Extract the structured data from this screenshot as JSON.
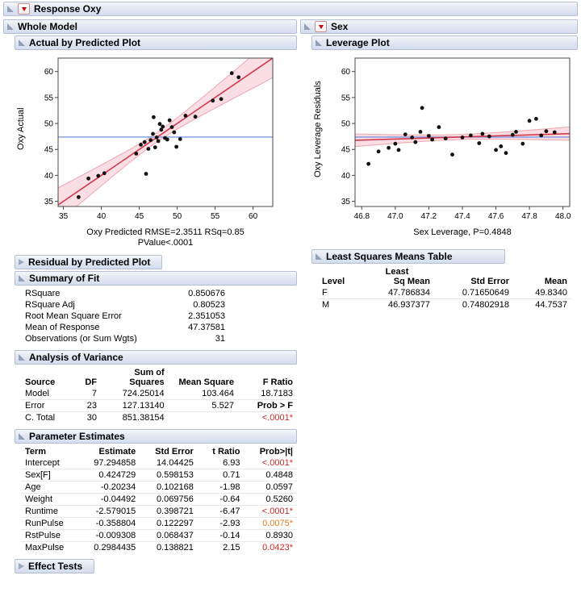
{
  "title": "Response Oxy",
  "colors": {
    "sig_red": "#cc2929",
    "sig_orange": "#df7b1e",
    "header_border": "#b4bfd4"
  },
  "sections": {
    "whole_model": {
      "title": "Whole Model"
    },
    "actual_by_predicted": {
      "title": "Actual by Predicted Plot"
    },
    "residual_by_predicted": {
      "title": "Residual by Predicted Plot"
    },
    "summary_of_fit": {
      "title": "Summary of Fit",
      "table": {
        "aligns": [
          "l",
          "r"
        ],
        "widths": [
          168,
          70
        ],
        "rows": [
          [
            "RSquare",
            "0.850676"
          ],
          [
            "RSquare Adj",
            "0.80523"
          ],
          [
            "Root Mean Square Error",
            "2.351053"
          ],
          [
            "Mean of Response",
            "47.37581"
          ],
          [
            "Observations (or Sum Wgts)",
            "31"
          ]
        ]
      }
    },
    "anova": {
      "title": "Analysis of Variance",
      "table": {
        "aligns": [
          "l",
          "r",
          "r",
          "r",
          "r"
        ],
        "widths": [
          58,
          34,
          84,
          80,
          72
        ],
        "header_top": [
          "",
          "",
          "Sum of",
          "",
          ""
        ],
        "header": [
          "Source",
          "DF",
          "Squares",
          "Mean Square",
          "F Ratio"
        ],
        "rows": [
          [
            "Model",
            "7",
            "724.25014",
            "103.464",
            "18.7183"
          ],
          [
            "Error",
            "23",
            "127.13140",
            "5.527",
            {
              "t": "Prob > F",
              "cls": "bold"
            }
          ],
          [
            "C. Total",
            "30",
            "851.38154",
            "",
            {
              "t": "<.0001*",
              "cls": "sig"
            }
          ]
        ]
      }
    },
    "parameter_estimates": {
      "title": "Parameter Estimates",
      "table": {
        "aligns": [
          "l",
          "r",
          "r",
          "r",
          "r"
        ],
        "widths": [
          62,
          74,
          66,
          52,
          60
        ],
        "header": [
          "Term",
          "Estimate",
          "Std Error",
          "t Ratio",
          "Prob>|t|"
        ],
        "rows": [
          [
            "Intercept",
            "97.294858",
            "14.04425",
            "6.93",
            {
              "t": "<.0001*",
              "cls": "sig"
            }
          ],
          [
            "Sex[F]",
            "0.424729",
            "0.598153",
            "0.71",
            "0.4848"
          ],
          [
            "Age",
            "-0.20234",
            "0.102168",
            "-1.98",
            "0.0597"
          ],
          [
            "Weight",
            "-0.04492",
            "0.069756",
            "-0.64",
            "0.5260"
          ],
          [
            "Runtime",
            "-2.579015",
            "0.398721",
            "-6.47",
            {
              "t": "<.0001*",
              "cls": "sig"
            }
          ],
          [
            "RunPulse",
            "-0.358804",
            "0.122297",
            "-2.93",
            {
              "t": "0.0075*",
              "cls": "sig-o"
            }
          ],
          [
            "RstPulse",
            "-0.009308",
            "0.068437",
            "-0.14",
            "0.8930"
          ],
          [
            "MaxPulse",
            "0.2984435",
            "0.138821",
            "2.15",
            {
              "t": "0.0423*",
              "cls": "sig"
            }
          ]
        ]
      }
    },
    "effect_tests": {
      "title": "Effect Tests"
    },
    "sex": {
      "title": "Sex"
    },
    "leverage_plot": {
      "title": "Leverage Plot"
    },
    "lsmeans": {
      "title": "Least Squares Means Table",
      "table": {
        "aligns": [
          "l",
          "r",
          "r",
          "r"
        ],
        "widths": [
          42,
          82,
          88,
          62
        ],
        "header_top": [
          "",
          {
            "t": "Least",
            "cls": "ctr"
          },
          "",
          ""
        ],
        "header": [
          "Level",
          "Sq Mean",
          "Std Error",
          "Mean"
        ],
        "rows": [
          [
            "F",
            "47.786834",
            "0.71650649",
            "49.8340"
          ],
          [
            "M",
            "46.937377",
            "0.74802918",
            "44.7537"
          ]
        ]
      }
    }
  },
  "chart_data": [
    {
      "id": "abp",
      "type": "scatter",
      "title": "Actual by Predicted Plot",
      "ylabel": "Oxy Actual",
      "xlabel_lines": [
        "Oxy Predicted RMSE=2.3511 RSq=0.85",
        "PValue<.0001"
      ],
      "xlim": [
        34.3,
        62.6
      ],
      "ylim": [
        34.0,
        62.6
      ],
      "xticks": [
        35,
        40,
        45,
        50,
        55,
        60
      ],
      "xtick_labels": [
        "35",
        "40",
        "45",
        "50",
        "55",
        "60"
      ],
      "yticks": [
        35,
        40,
        45,
        50,
        55,
        60
      ],
      "ytick_labels": [
        "35",
        "40",
        "45",
        "50",
        "55",
        "60"
      ],
      "points": [
        [
          37.0,
          35.8
        ],
        [
          38.3,
          39.4
        ],
        [
          39.6,
          39.9
        ],
        [
          40.4,
          40.4
        ],
        [
          44.6,
          44.2
        ],
        [
          45.2,
          45.9
        ],
        [
          45.7,
          46.4
        ],
        [
          45.9,
          40.3
        ],
        [
          46.2,
          45.1
        ],
        [
          46.5,
          46.8
        ],
        [
          46.8,
          48.0
        ],
        [
          46.9,
          51.2
        ],
        [
          47.1,
          45.4
        ],
        [
          47.3,
          47.3
        ],
        [
          47.5,
          46.6
        ],
        [
          47.7,
          49.9
        ],
        [
          47.9,
          48.8
        ],
        [
          48.1,
          49.4
        ],
        [
          48.4,
          47.2
        ],
        [
          48.7,
          46.9
        ],
        [
          49.0,
          50.6
        ],
        [
          49.3,
          49.3
        ],
        [
          49.6,
          48.3
        ],
        [
          49.9,
          45.5
        ],
        [
          50.4,
          47.0
        ],
        [
          51.1,
          51.5
        ],
        [
          52.4,
          51.3
        ],
        [
          54.7,
          54.4
        ],
        [
          55.8,
          54.7
        ],
        [
          57.2,
          59.7
        ],
        [
          58.1,
          58.9
        ]
      ],
      "fit_line": {
        "x": [
          34.3,
          62.6
        ],
        "y": [
          34.3,
          62.6
        ]
      },
      "mean_line_y": 47.37581,
      "band": {
        "center_x": 47.38,
        "half_center": 0.9,
        "half_edge": 3.8
      },
      "colors": {
        "fit": "#d2384e",
        "mean": "#7b96dd",
        "band_fill": "rgba(236,92,113,0.20)",
        "band_edge": "rgba(221,110,125,0.55)",
        "point": "#111111"
      }
    },
    {
      "id": "lev",
      "type": "scatter",
      "title": "Leverage Plot",
      "ylabel": "Oxy Leverage Residuals",
      "xlabel_lines": [
        "Sex Leverage, P=0.4848"
      ],
      "xlim": [
        46.76,
        48.04
      ],
      "ylim": [
        34.0,
        62.6
      ],
      "xticks": [
        46.8,
        47.0,
        47.2,
        47.4,
        47.6,
        47.8,
        48.0
      ],
      "xtick_labels": [
        "46.8",
        "47.0",
        "47.2",
        "47.4",
        "47.6",
        "47.8",
        "48.0"
      ],
      "yticks": [
        35,
        40,
        45,
        50,
        55,
        60
      ],
      "ytick_labels": [
        "35",
        "40",
        "45",
        "50",
        "55",
        "60"
      ],
      "points": [
        [
          46.84,
          42.2
        ],
        [
          46.9,
          44.6
        ],
        [
          46.96,
          45.3
        ],
        [
          47.0,
          46.1
        ],
        [
          47.02,
          44.9
        ],
        [
          47.06,
          47.9
        ],
        [
          47.1,
          47.3
        ],
        [
          47.12,
          46.4
        ],
        [
          47.15,
          48.4
        ],
        [
          47.16,
          53.0
        ],
        [
          47.2,
          47.6
        ],
        [
          47.22,
          46.9
        ],
        [
          47.26,
          49.3
        ],
        [
          47.3,
          47.1
        ],
        [
          47.34,
          44.0
        ],
        [
          47.4,
          47.3
        ],
        [
          47.45,
          47.7
        ],
        [
          47.5,
          46.2
        ],
        [
          47.52,
          48.0
        ],
        [
          47.56,
          47.5
        ],
        [
          47.6,
          44.9
        ],
        [
          47.63,
          45.6
        ],
        [
          47.66,
          44.3
        ],
        [
          47.7,
          47.8
        ],
        [
          47.72,
          48.4
        ],
        [
          47.76,
          46.1
        ],
        [
          47.8,
          50.5
        ],
        [
          47.84,
          50.9
        ],
        [
          47.87,
          47.7
        ],
        [
          47.9,
          48.5
        ],
        [
          47.95,
          48.3
        ]
      ],
      "fit_line": {
        "x": [
          46.76,
          48.04
        ],
        "y": [
          46.76,
          48.04
        ]
      },
      "mean_line_y": 47.37581,
      "band": {
        "center_x": 47.376,
        "half_center": 0.5,
        "half_edge": 1.3
      },
      "colors": {
        "fit": "#d2384e",
        "mean": "#7b96dd",
        "band_fill": "rgba(236,92,113,0.20)",
        "band_edge": "rgba(221,110,125,0.55)",
        "point": "#111111"
      }
    }
  ]
}
